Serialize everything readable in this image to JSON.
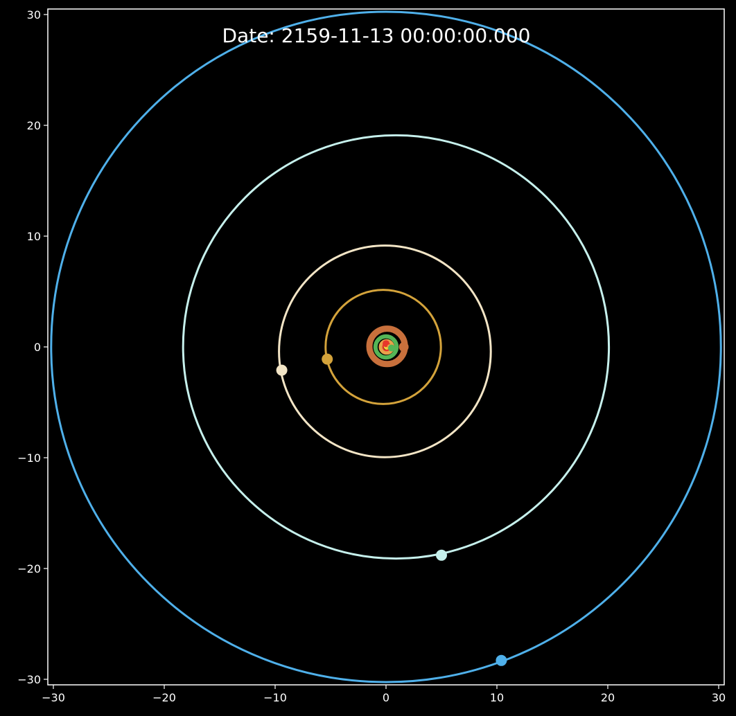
{
  "chart_data": {
    "type": "scatter",
    "annotation": "Date: 2159-11-13 00:00:00.000",
    "xlim": [
      -30.5,
      30.5
    ],
    "ylim": [
      -30.5,
      30.5
    ],
    "xticks": [
      -30,
      -20,
      -10,
      0,
      10,
      20,
      30
    ],
    "yticks": [
      -30,
      -20,
      -10,
      0,
      10,
      20,
      30
    ],
    "tick_labels": [
      "−30",
      "−20",
      "−10",
      "0",
      "10",
      "20",
      "30"
    ],
    "grid": false,
    "background": "#000000",
    "axis_color": "#ffffff",
    "orbits": [
      {
        "cx": 0.0,
        "cy": -0.05,
        "rx": 0.3,
        "ry": 0.3,
        "color": "#e8372b",
        "width": 3
      },
      {
        "cx": 0.05,
        "cy": 0.0,
        "rx": 0.55,
        "ry": 0.55,
        "color": "#e8a24a",
        "width": 5
      },
      {
        "cx": 0.0,
        "cy": 0.0,
        "rx": 0.95,
        "ry": 0.95,
        "color": "#55b556",
        "width": 6
      },
      {
        "cx": 0.1,
        "cy": 0.05,
        "rx": 1.6,
        "ry": 1.6,
        "color": "#c8703c",
        "width": 9
      },
      {
        "cx": -0.25,
        "cy": 0.0,
        "rx": 5.2,
        "ry": 5.15,
        "color": "#d4a33b",
        "width": 3
      },
      {
        "cx": -0.1,
        "cy": -0.4,
        "rx": 9.55,
        "ry": 9.55,
        "color": "#f3e5c6",
        "width": 3
      },
      {
        "cx": 0.9,
        "cy": 0.0,
        "rx": 19.2,
        "ry": 19.1,
        "color": "#c6f0ec",
        "width": 3
      },
      {
        "cx": 0.0,
        "cy": 0.0,
        "rx": 30.2,
        "ry": 30.25,
        "color": "#4fb0ea",
        "width": 3
      }
    ],
    "bodies": [
      {
        "x": 0.05,
        "y": 0.0,
        "color": "#f4d03a",
        "r": 4
      },
      {
        "x": 0.0,
        "y": 0.3,
        "color": "#e8372b",
        "r": 5
      },
      {
        "x": 0.35,
        "y": 0.0,
        "color": "#e8a24a",
        "r": 4
      },
      {
        "x": 0.5,
        "y": -0.1,
        "color": "#55b556",
        "r": 5
      },
      {
        "x": 1.6,
        "y": 0.0,
        "color": "#c8703c",
        "r": 7
      },
      {
        "x": -5.3,
        "y": -1.1,
        "color": "#d4a33b",
        "r": 8
      },
      {
        "x": -9.4,
        "y": -2.1,
        "color": "#f3e5c6",
        "r": 8
      },
      {
        "x": 5.0,
        "y": -18.8,
        "color": "#c6f0ec",
        "r": 8
      },
      {
        "x": 10.4,
        "y": -28.3,
        "color": "#4fb0ea",
        "r": 8
      }
    ]
  }
}
